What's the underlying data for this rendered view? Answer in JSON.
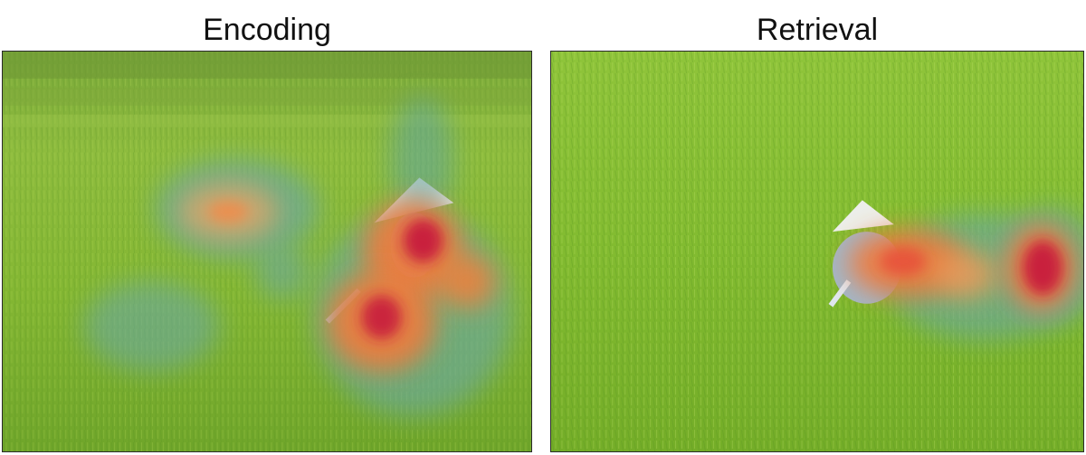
{
  "panels": {
    "left": {
      "title": "Encoding",
      "scene": "rice-field-photo",
      "overlay": "attention-heatmap"
    },
    "right": {
      "title": "Retrieval",
      "scene": "rice-field-photo",
      "overlay": "attention-heatmap"
    }
  },
  "colors": {
    "grass_light": "#8fc43a",
    "grass_mid": "#6ea92a",
    "grass_dark": "#4f8a1f",
    "heat_hot": "#c81e3c",
    "heat_warm": "#f07a3c",
    "heat_cool": "#5fa5a0"
  }
}
